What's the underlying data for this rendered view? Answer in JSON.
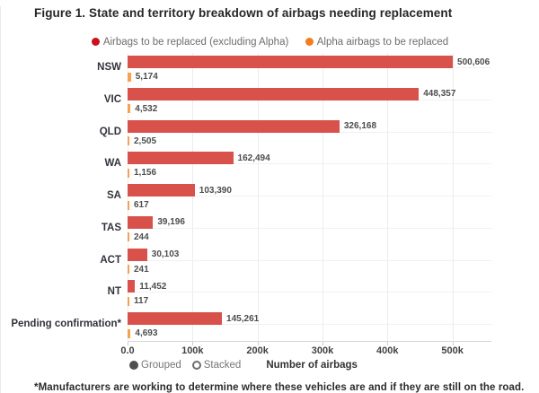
{
  "title": "Figure 1. State and territory breakdown of airbags needing replacement",
  "legend": {
    "items": [
      {
        "label": "Airbags to be replaced (excluding Alpha)",
        "color": "#c9101e"
      },
      {
        "label": "Alpha airbags to be replaced",
        "color": "#f47c20"
      }
    ]
  },
  "controls": {
    "grouped_label": "Grouped",
    "stacked_label": "Stacked",
    "selected": "Grouped"
  },
  "footnote": "*Manufacturers are working to determine where these vehicles are and if they are still on the road.",
  "chart_data": {
    "type": "bar",
    "orientation": "horizontal",
    "title": "Figure 1. State and territory breakdown of airbags needing replacement",
    "xlabel": "Number of airbags",
    "xlim": [
      0,
      560000
    ],
    "grid": "vertical",
    "legend_position": "top",
    "x_ticks": [
      {
        "label": "0.0",
        "value": 0
      },
      {
        "label": "100k",
        "value": 100000
      },
      {
        "label": "200k",
        "value": 200000
      },
      {
        "label": "300k",
        "value": 300000
      },
      {
        "label": "400k",
        "value": 400000
      },
      {
        "label": "500k",
        "value": 500000
      }
    ],
    "categories": [
      "NSW",
      "VIC",
      "QLD",
      "WA",
      "SA",
      "TAS",
      "ACT",
      "NT",
      "Pending confirmation*"
    ],
    "series": [
      {
        "name": "Airbags to be replaced (excluding Alpha)",
        "color": "#d8514b",
        "legend_color": "#c9101e",
        "values": [
          500606,
          448357,
          326168,
          162494,
          103390,
          39196,
          30103,
          11452,
          145261
        ],
        "value_labels": [
          "500,606",
          "448,357",
          "326,168",
          "162,494",
          "103,390",
          "39,196",
          "30,103",
          "11,452",
          "145,261"
        ]
      },
      {
        "name": "Alpha airbags to be replaced",
        "color": "#f7a04f",
        "legend_color": "#f47c20",
        "values": [
          5174,
          4532,
          2505,
          1156,
          617,
          244,
          241,
          117,
          4693
        ],
        "value_labels": [
          "5,174",
          "4,532",
          "2,505",
          "1,156",
          "617",
          "244",
          "241",
          "117",
          "4,693"
        ]
      }
    ],
    "toggle": {
      "options": [
        "Grouped",
        "Stacked"
      ],
      "selected": "Grouped"
    }
  }
}
